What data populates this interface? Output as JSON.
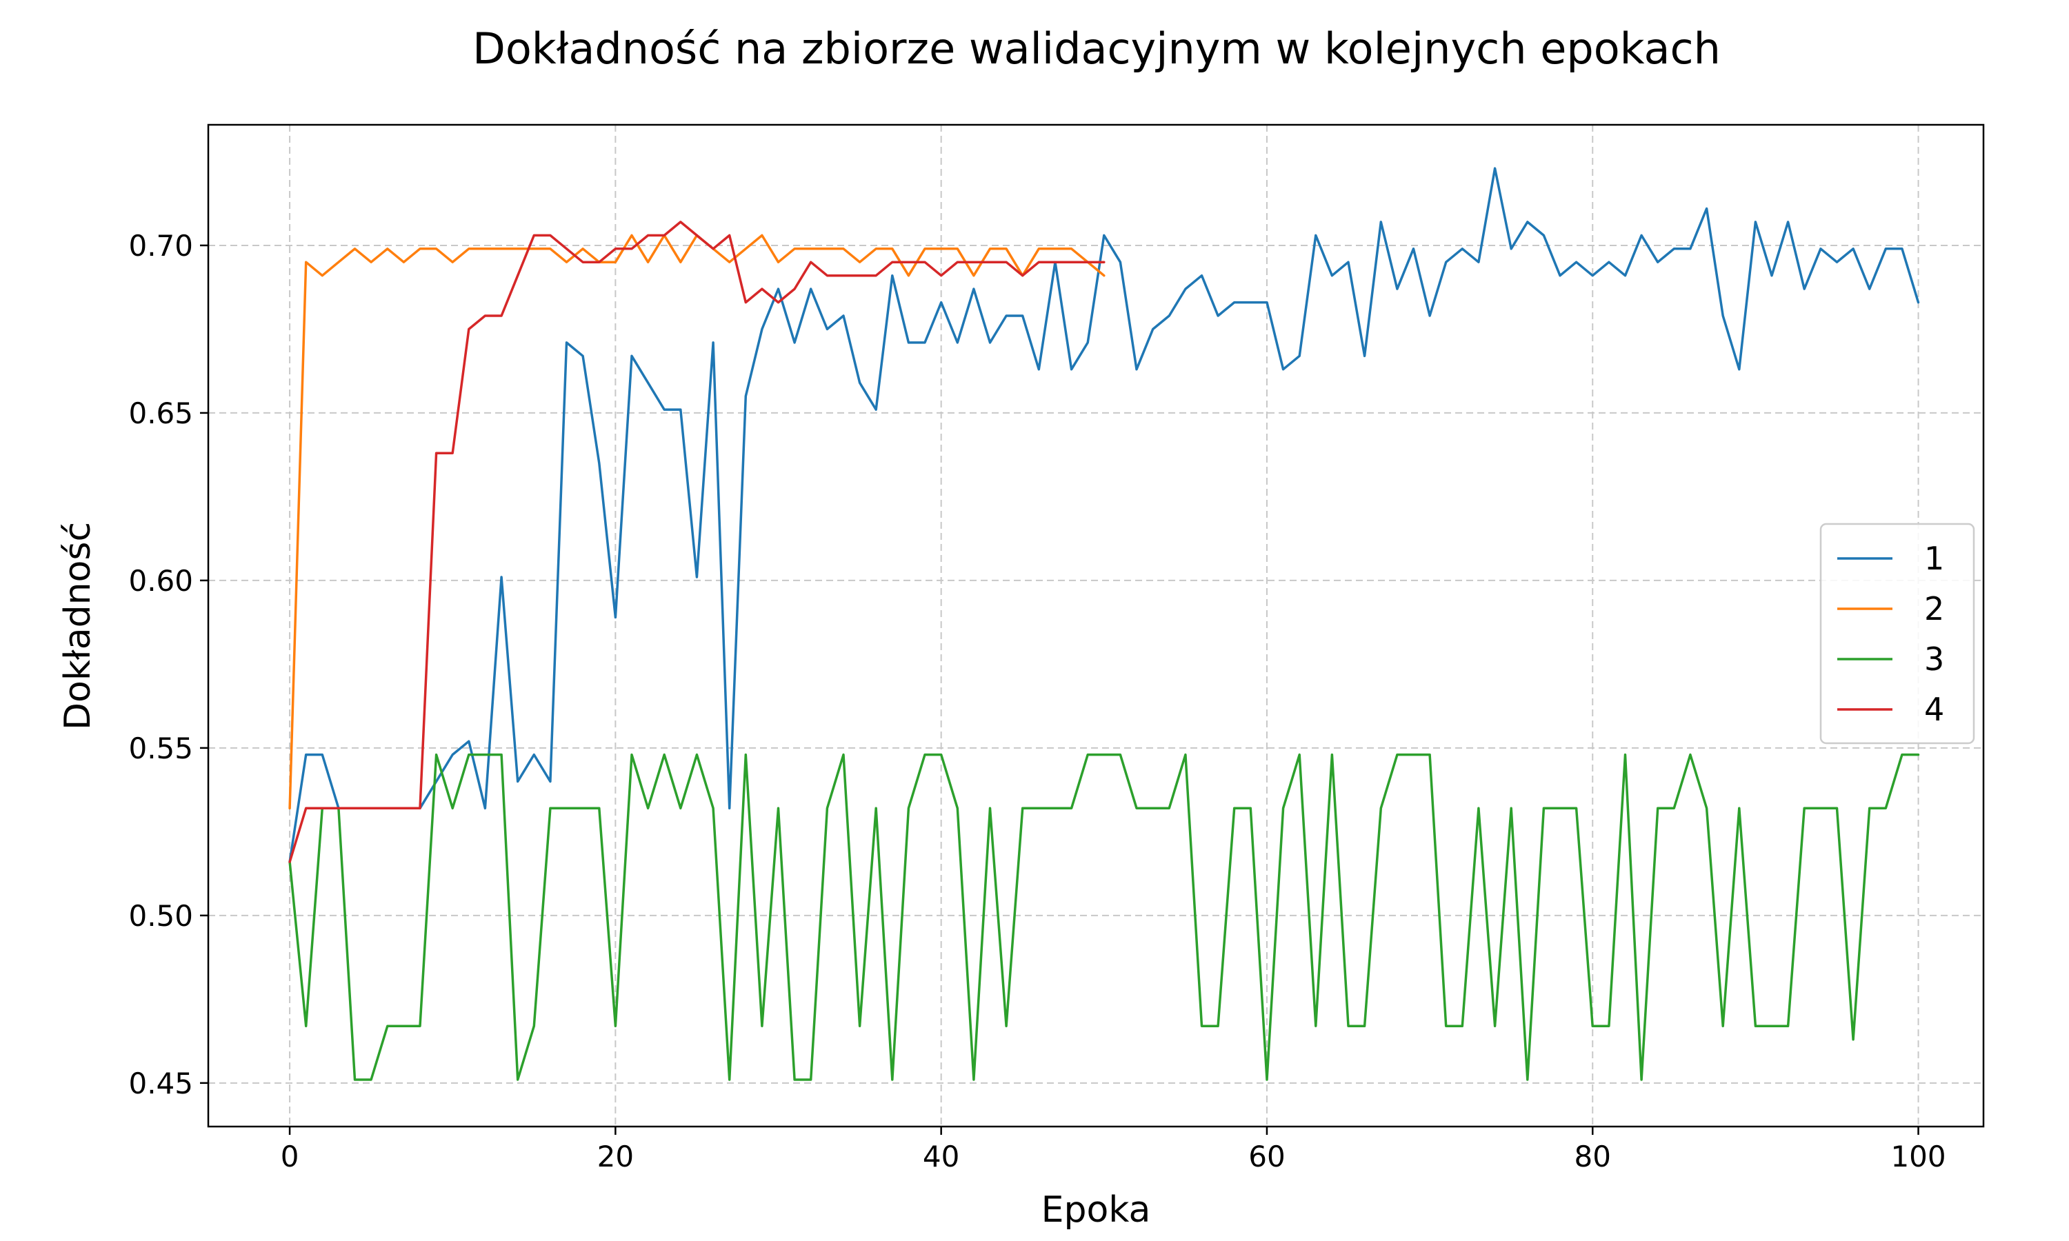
{
  "chart_data": {
    "type": "line",
    "title": "Dokładność na zbiorze walidacyjnym w kolejnych epokach",
    "xlabel": "Epoka",
    "ylabel": "Dokładność",
    "xlim": [
      -5,
      104
    ],
    "ylim": [
      0.437,
      0.736
    ],
    "x_ticks": [
      0,
      20,
      40,
      60,
      80,
      100
    ],
    "y_ticks": [
      0.45,
      0.5,
      0.55,
      0.6,
      0.65,
      0.7
    ],
    "y_tick_labels": [
      "0.45",
      "0.50",
      "0.55",
      "0.60",
      "0.65",
      "0.70"
    ],
    "grid": true,
    "legend_position": "center-right",
    "series": [
      {
        "name": "1",
        "color": "#1f77b4",
        "x_start": 0,
        "values": [
          0.516,
          0.548,
          0.548,
          0.532,
          0.532,
          0.532,
          0.532,
          0.532,
          0.532,
          0.54,
          0.548,
          0.552,
          0.532,
          0.601,
          0.54,
          0.548,
          0.54,
          0.671,
          0.667,
          0.635,
          0.589,
          0.667,
          0.659,
          0.651,
          0.651,
          0.601,
          0.671,
          0.532,
          0.655,
          0.675,
          0.687,
          0.671,
          0.687,
          0.675,
          0.679,
          0.659,
          0.651,
          0.691,
          0.671,
          0.671,
          0.683,
          0.671,
          0.687,
          0.671,
          0.679,
          0.679,
          0.663,
          0.695,
          0.663,
          0.671,
          0.703,
          0.695,
          0.663,
          0.675,
          0.679,
          0.687,
          0.691,
          0.679,
          0.683,
          0.683,
          0.683,
          0.663,
          0.667,
          0.703,
          0.691,
          0.695,
          0.667,
          0.707,
          0.687,
          0.699,
          0.679,
          0.695,
          0.699,
          0.695,
          0.723,
          0.699,
          0.707,
          0.703,
          0.691,
          0.695,
          0.691,
          0.695,
          0.691,
          0.703,
          0.695,
          0.699,
          0.699,
          0.711,
          0.679,
          0.663,
          0.707,
          0.691,
          0.707,
          0.687,
          0.699,
          0.695,
          0.699,
          0.687,
          0.699,
          0.699,
          0.683
        ]
      },
      {
        "name": "2",
        "color": "#ff7f0e",
        "x_start": 0,
        "values": [
          0.532,
          0.695,
          0.691,
          0.695,
          0.699,
          0.695,
          0.699,
          0.695,
          0.699,
          0.699,
          0.695,
          0.699,
          0.699,
          0.699,
          0.699,
          0.699,
          0.699,
          0.695,
          0.699,
          0.695,
          0.695,
          0.703,
          0.695,
          0.703,
          0.695,
          0.703,
          0.699,
          0.695,
          0.699,
          0.703,
          0.695,
          0.699,
          0.699,
          0.699,
          0.699,
          0.695,
          0.699,
          0.699,
          0.691,
          0.699,
          0.699,
          0.699,
          0.691,
          0.699,
          0.699,
          0.691,
          0.699,
          0.699,
          0.699,
          0.695,
          0.691
        ]
      },
      {
        "name": "3",
        "color": "#2ca02c",
        "x_start": 0,
        "values": [
          0.516,
          0.467,
          0.532,
          0.532,
          0.451,
          0.451,
          0.467,
          0.467,
          0.467,
          0.548,
          0.532,
          0.548,
          0.548,
          0.548,
          0.451,
          0.467,
          0.532,
          0.532,
          0.532,
          0.532,
          0.467,
          0.548,
          0.532,
          0.548,
          0.532,
          0.548,
          0.532,
          0.451,
          0.548,
          0.467,
          0.532,
          0.451,
          0.451,
          0.532,
          0.548,
          0.467,
          0.532,
          0.451,
          0.532,
          0.548,
          0.548,
          0.532,
          0.451,
          0.532,
          0.467,
          0.532,
          0.532,
          0.532,
          0.532,
          0.548,
          0.548,
          0.548,
          0.532,
          0.532,
          0.532,
          0.548,
          0.467,
          0.467,
          0.532,
          0.532,
          0.451,
          0.532,
          0.548,
          0.467,
          0.548,
          0.467,
          0.467,
          0.532,
          0.548,
          0.548,
          0.548,
          0.467,
          0.467,
          0.532,
          0.467,
          0.532,
          0.451,
          0.532,
          0.532,
          0.532,
          0.467,
          0.467,
          0.548,
          0.451,
          0.532,
          0.532,
          0.548,
          0.532,
          0.467,
          0.532,
          0.467,
          0.467,
          0.467,
          0.532,
          0.532,
          0.532,
          0.463,
          0.532,
          0.532,
          0.548,
          0.548
        ]
      },
      {
        "name": "4",
        "color": "#d62728",
        "x_start": 0,
        "values": [
          0.516,
          0.532,
          0.532,
          0.532,
          0.532,
          0.532,
          0.532,
          0.532,
          0.532,
          0.638,
          0.638,
          0.675,
          0.679,
          0.679,
          0.691,
          0.703,
          0.703,
          0.699,
          0.695,
          0.695,
          0.699,
          0.699,
          0.703,
          0.703,
          0.707,
          0.703,
          0.699,
          0.703,
          0.683,
          0.687,
          0.683,
          0.687,
          0.695,
          0.691,
          0.691,
          0.691,
          0.691,
          0.695,
          0.695,
          0.695,
          0.691,
          0.695,
          0.695,
          0.695,
          0.695,
          0.691,
          0.695,
          0.695,
          0.695,
          0.695,
          0.695
        ]
      }
    ]
  }
}
